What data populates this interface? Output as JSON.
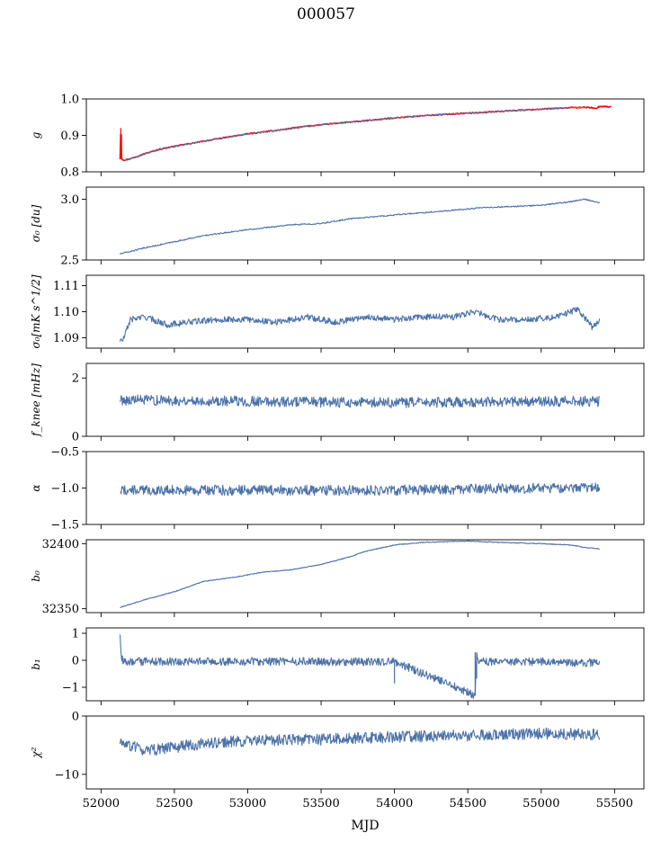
{
  "figure": {
    "title": "000057",
    "xlabel": "MJD"
  },
  "chart_data": [
    {
      "type": "line",
      "ylabel": "g",
      "ylim": [
        0.8,
        1.0
      ],
      "yticks": [
        {
          "v": 0.8,
          "label": "0.8"
        },
        {
          "v": 0.9,
          "label": "0.9"
        },
        {
          "v": 1.0,
          "label": "1.0"
        }
      ],
      "xlim": [
        51900,
        55700
      ],
      "xticks": [
        52000,
        52500,
        53000,
        53500,
        54000,
        54500,
        55000,
        55500
      ],
      "series": [
        {
          "color": "#ff0000",
          "x": [
            52130,
            52135,
            52140,
            52160,
            52200,
            52300,
            52400,
            52500,
            52600,
            52800,
            53000,
            53200,
            53400,
            53600,
            53800,
            54000,
            54200,
            54400,
            54600,
            54800,
            55000,
            55200,
            55300,
            55380,
            55400,
            55480
          ],
          "y": [
            0.835,
            0.92,
            0.835,
            0.832,
            0.836,
            0.85,
            0.862,
            0.87,
            0.877,
            0.891,
            0.904,
            0.914,
            0.925,
            0.933,
            0.94,
            0.948,
            0.954,
            0.959,
            0.963,
            0.968,
            0.972,
            0.976,
            0.977,
            0.975,
            0.98,
            0.978
          ],
          "noise": 0.0015
        },
        {
          "color": "#4c72a8",
          "x": [
            52160,
            52200,
            52300,
            52400,
            52500,
            52600,
            52800,
            53000,
            53200,
            53400,
            53600,
            53800,
            54000,
            54200,
            54400,
            54600,
            54800,
            55000,
            55200,
            55300
          ],
          "y": [
            0.832,
            0.836,
            0.85,
            0.862,
            0.87,
            0.877,
            0.891,
            0.904,
            0.914,
            0.925,
            0.933,
            0.94,
            0.948,
            0.954,
            0.959,
            0.963,
            0.968,
            0.972,
            0.976,
            0.977
          ],
          "noise": 0.0005
        }
      ]
    },
    {
      "type": "line",
      "ylabel": "σ₀ [du]",
      "ylim": [
        2.5,
        3.1
      ],
      "yticks": [
        {
          "v": 2.5,
          "label": "2.5"
        },
        {
          "v": 3.0,
          "label": "3.0"
        }
      ],
      "xlim": [
        51900,
        55700
      ],
      "series": [
        {
          "color": "#4c72a8",
          "x": [
            52130,
            52300,
            52500,
            52700,
            53000,
            53300,
            53500,
            53700,
            54000,
            54300,
            54600,
            55000,
            55200,
            55300,
            55400
          ],
          "y": [
            2.55,
            2.6,
            2.65,
            2.7,
            2.75,
            2.79,
            2.8,
            2.84,
            2.87,
            2.9,
            2.93,
            2.95,
            2.98,
            3.0,
            2.97
          ],
          "noise": 0.005
        }
      ]
    },
    {
      "type": "line",
      "ylabel": "σ₀[mK s^1/2]",
      "ylim": [
        1.086,
        1.114
      ],
      "yticks": [
        {
          "v": 1.09,
          "label": "1.09"
        },
        {
          "v": 1.1,
          "label": "1.10"
        },
        {
          "v": 1.11,
          "label": "1.11"
        }
      ],
      "xlim": [
        51900,
        55700
      ],
      "series": [
        {
          "color": "#4c72a8",
          "x": [
            52130,
            52150,
            52200,
            52300,
            52450,
            52600,
            52800,
            53000,
            53200,
            53400,
            53600,
            53800,
            54000,
            54200,
            54400,
            54550,
            54700,
            54900,
            55100,
            55250,
            55350,
            55400
          ],
          "y": [
            1.089,
            1.089,
            1.097,
            1.098,
            1.095,
            1.096,
            1.097,
            1.097,
            1.096,
            1.098,
            1.096,
            1.098,
            1.097,
            1.098,
            1.098,
            1.1,
            1.097,
            1.097,
            1.098,
            1.101,
            1.094,
            1.097
          ],
          "noise": 0.0012
        }
      ]
    },
    {
      "type": "line",
      "ylabel": "f_knee [mHz]",
      "ylim": [
        0,
        2.5
      ],
      "yticks": [
        {
          "v": 0,
          "label": "0"
        },
        {
          "v": 2,
          "label": "2"
        }
      ],
      "xlim": [
        51900,
        55700
      ],
      "series": [
        {
          "color": "#4c72a8",
          "x": [
            52130,
            53000,
            54000,
            55000,
            55400
          ],
          "y": [
            1.25,
            1.2,
            1.15,
            1.2,
            1.2
          ],
          "noise": 0.18
        }
      ]
    },
    {
      "type": "line",
      "ylabel": "α",
      "ylim": [
        -1.5,
        -0.5
      ],
      "yticks": [
        {
          "v": -1.5,
          "label": "−1.5"
        },
        {
          "v": -1.0,
          "label": "−1.0"
        },
        {
          "v": -0.5,
          "label": "−0.5"
        }
      ],
      "xlim": [
        51900,
        55700
      ],
      "series": [
        {
          "color": "#4c72a8",
          "x": [
            52130,
            53000,
            54000,
            55000,
            55400
          ],
          "y": [
            -1.03,
            -1.03,
            -1.03,
            -1.0,
            -1.0
          ],
          "noise": 0.07
        }
      ]
    },
    {
      "type": "line",
      "ylabel": "b₀",
      "ylim": [
        32347,
        32403
      ],
      "yticks": [
        {
          "v": 32350,
          "label": "32350"
        },
        {
          "v": 32400,
          "label": "32400"
        }
      ],
      "xlim": [
        51900,
        55700
      ],
      "series": [
        {
          "color": "#4c72a8",
          "x": [
            52130,
            52300,
            52500,
            52700,
            52900,
            53100,
            53300,
            53500,
            53700,
            53800,
            54000,
            54200,
            54500,
            54700,
            55000,
            55200,
            55300,
            55400
          ],
          "y": [
            32351,
            32357,
            32363,
            32371,
            32374,
            32378,
            32380,
            32384,
            32390,
            32394,
            32399,
            32401,
            32402,
            32401,
            32400,
            32399,
            32397,
            32396
          ],
          "noise": 0.3
        }
      ]
    },
    {
      "type": "line",
      "ylabel": "b₁",
      "ylim": [
        -1.5,
        1.2
      ],
      "yticks": [
        {
          "v": -1,
          "label": "−1"
        },
        {
          "v": 0,
          "label": "0"
        },
        {
          "v": 1,
          "label": "1"
        }
      ],
      "xlim": [
        51900,
        55700
      ],
      "series": [
        {
          "color": "#4c72a8",
          "x": [
            52130,
            52135,
            52150,
            53000,
            54000,
            54550,
            54560,
            54570,
            55000,
            55400
          ],
          "y": [
            1.0,
            0.2,
            -0.05,
            -0.05,
            -0.05,
            -1.3,
            0.3,
            -0.05,
            -0.05,
            -0.1
          ],
          "noise": 0.15
        }
      ]
    },
    {
      "type": "line",
      "ylabel": "χ²",
      "ylim": [
        -12.5,
        0
      ],
      "yticks": [
        {
          "v": -10,
          "label": "−10"
        },
        {
          "v": 0,
          "label": "0"
        }
      ],
      "xlim": [
        51900,
        55700
      ],
      "series": [
        {
          "color": "#4c72a8",
          "x": [
            52130,
            52300,
            52600,
            53000,
            53500,
            54000,
            54500,
            55000,
            55400
          ],
          "y": [
            -4.5,
            -6,
            -5,
            -4.2,
            -4,
            -3.6,
            -3.3,
            -3,
            -3.2
          ],
          "noise": 1.0
        }
      ]
    }
  ]
}
